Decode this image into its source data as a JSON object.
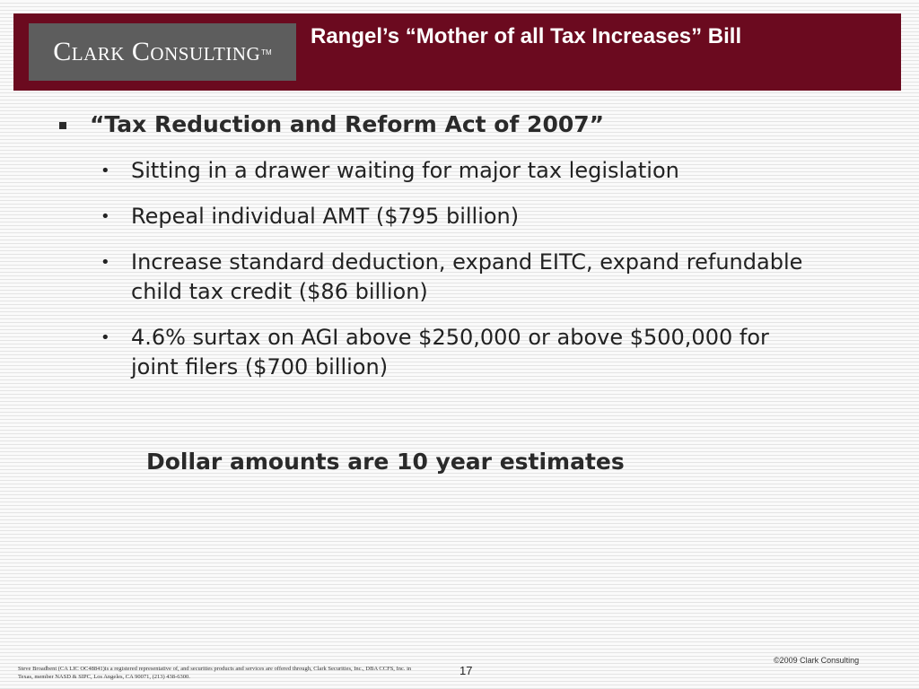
{
  "header": {
    "logo_text": "Clark Consulting",
    "logo_tm": "TM",
    "title": "Rangel’s “Mother of all Tax Increases” Bill"
  },
  "content": {
    "main_bullet": "“Tax Reduction and Reform Act of 2007”",
    "sub_bullets": [
      "Sitting in a drawer waiting for major tax legislation",
      "Repeal individual AMT ($795 billion)",
      "Increase standard deduction, expand EITC, expand refundable child tax credit ($86 billion)",
      "4.6% surtax on AGI above $250,000 or above $500,000 for joint filers ($700 billion)"
    ],
    "note": "Dollar amounts are 10 year estimates"
  },
  "footer": {
    "copyright": "©2009 Clark Consulting",
    "disclaimer": "Steve Broadbent (CA LIC OC48841)is a registered representative of, and securities products and services are offered through, Clark Securities, Inc., DBA CCFS, Inc. in Texas, member NASD & SIPC, Los Angeles, CA 90071, (213) 438-6300.",
    "page_number": "17"
  },
  "colors": {
    "header_bg": "#6b0a1f",
    "logo_bg": "#5d5d5d",
    "text": "#222222"
  }
}
